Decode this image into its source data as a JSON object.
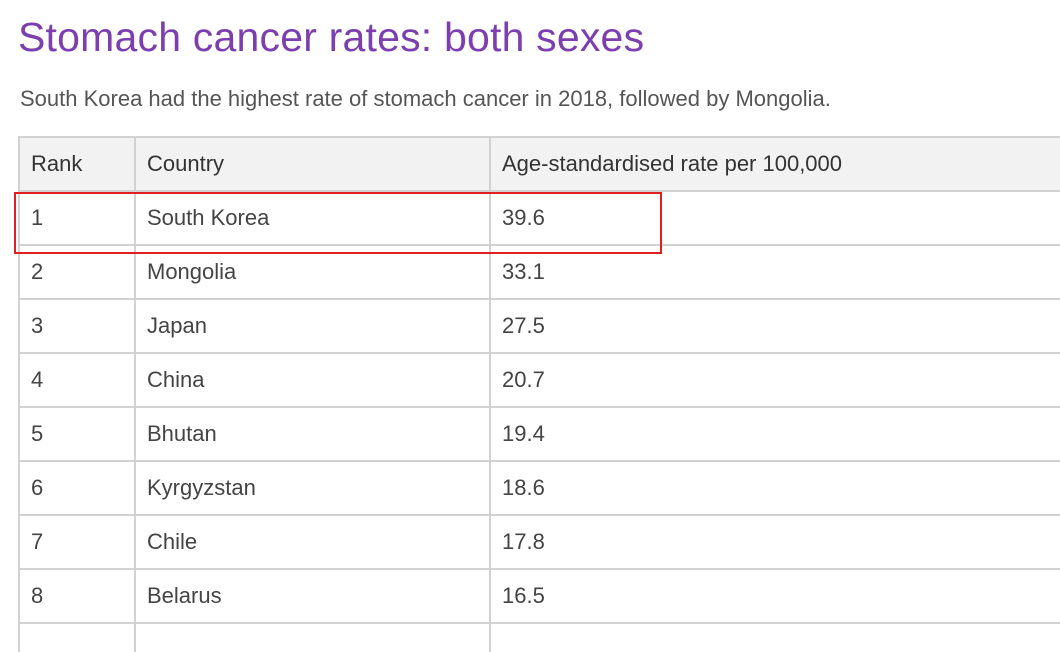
{
  "title": "Stomach cancer rates: both sexes",
  "subtitle": "South Korea had the highest rate of stomach cancer in 2018, followed by Mongolia.",
  "colors": {
    "title": "#7b3fb0",
    "highlight": "#e02020",
    "header_bg": "#f2f2f2",
    "border": "#d2d2d2"
  },
  "table": {
    "headers": [
      "Rank",
      "Country",
      "Age-standardised rate per 100,000"
    ],
    "rows": [
      [
        "1",
        "South Korea",
        "39.6"
      ],
      [
        "2",
        "Mongolia",
        "33.1"
      ],
      [
        "3",
        "Japan",
        "27.5"
      ],
      [
        "4",
        "China",
        "20.7"
      ],
      [
        "5",
        "Bhutan",
        "19.4"
      ],
      [
        "6",
        "Kyrgyzstan",
        "18.6"
      ],
      [
        "7",
        "Chile",
        "17.8"
      ],
      [
        "8",
        "Belarus",
        "16.5"
      ]
    ],
    "highlighted_row": "1"
  }
}
